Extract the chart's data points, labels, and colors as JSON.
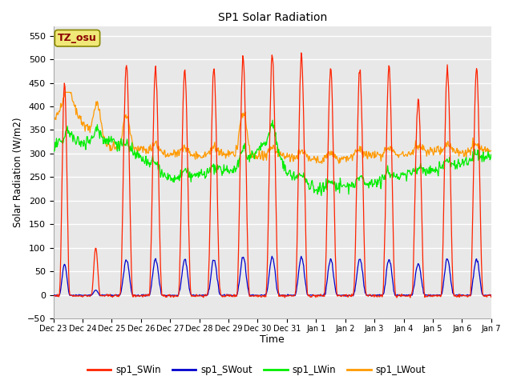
{
  "title": "SP1 Solar Radiation",
  "xlabel": "Time",
  "ylabel": "Solar Radiation (W/m2)",
  "ylim": [
    -50,
    570
  ],
  "annotation": "TZ_osu",
  "annotation_color": "#8B0000",
  "annotation_bg": "#f0e878",
  "colors": {
    "SWin": "#ff2200",
    "SWout": "#0000cc",
    "LWin": "#00ee00",
    "LWout": "#ff9900"
  },
  "legend_labels": [
    "sp1_SWin",
    "sp1_SWout",
    "sp1_LWin",
    "sp1_LWout"
  ],
  "fig_bg": "#ffffff",
  "plot_bg": "#e8e8e8",
  "grid_color": "#ffffff",
  "yticks": [
    -50,
    0,
    50,
    100,
    150,
    200,
    250,
    300,
    350,
    400,
    450,
    500,
    550
  ],
  "xtick_labels": [
    "Dec 23",
    "Dec 24",
    "Dec 25",
    "Dec 26",
    "Dec 27",
    "Dec 28",
    "Dec 29",
    "Dec 30",
    "Dec 31",
    "Jan 1",
    "Jan 2",
    "Jan 3",
    "Jan 4",
    "Jan 5",
    "Jan 6",
    "Jan 7"
  ],
  "n_days": 15
}
